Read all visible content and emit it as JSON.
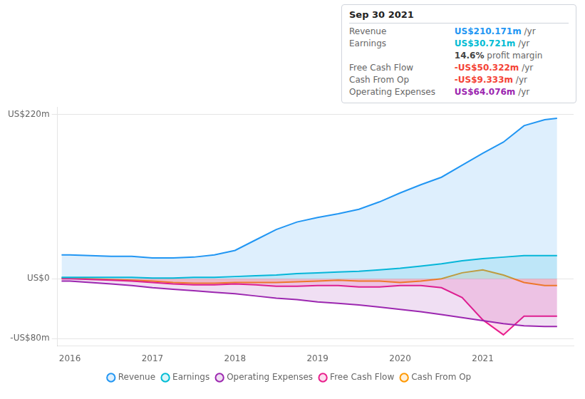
{
  "chart_data": {
    "type": "line",
    "x": [
      2015.9,
      2016.0,
      2016.25,
      2016.5,
      2016.75,
      2017.0,
      2017.25,
      2017.5,
      2017.75,
      2018.0,
      2018.25,
      2018.5,
      2018.75,
      2019.0,
      2019.25,
      2019.5,
      2019.75,
      2020.0,
      2020.25,
      2020.5,
      2020.75,
      2021.0,
      2021.25,
      2021.5,
      2021.75,
      2021.9
    ],
    "series": [
      {
        "name": "Revenue",
        "color": "#2196f3",
        "values": [
          32,
          32,
          31,
          30,
          30,
          28,
          28,
          29,
          32,
          38,
          52,
          66,
          76,
          82,
          87,
          93,
          103,
          115,
          126,
          136,
          152,
          168,
          183,
          205,
          213,
          215
        ]
      },
      {
        "name": "Earnings",
        "color": "#00bcd4",
        "values": [
          2,
          2,
          2,
          2,
          2,
          1,
          1,
          2,
          2,
          3,
          4,
          5,
          7,
          8,
          9,
          10,
          12,
          14,
          17,
          20,
          24,
          27,
          29,
          31,
          31,
          31
        ]
      },
      {
        "name": "Operating Expenses",
        "color": "#9c27b0",
        "values": [
          -3,
          -3,
          -5,
          -7,
          -9,
          -12,
          -14,
          -16,
          -18,
          -20,
          -23,
          -26,
          -28,
          -31,
          -33,
          -35,
          -38,
          -41,
          -44,
          -48,
          -52,
          -56,
          -60,
          -63,
          -64,
          -64
        ]
      },
      {
        "name": "Free Cash Flow",
        "color": "#e91e8c",
        "values": [
          0,
          0,
          -1,
          -2,
          -3,
          -5,
          -7,
          -8,
          -8,
          -7,
          -8,
          -10,
          -10,
          -9,
          -9,
          -11,
          -11,
          -9,
          -9,
          -12,
          -25,
          -55,
          -75,
          -50,
          -50,
          -50
        ]
      },
      {
        "name": "Cash From Op",
        "color": "#ff9800",
        "values": [
          1,
          1,
          0,
          -1,
          -2,
          -3,
          -5,
          -6,
          -6,
          -5,
          -5,
          -5,
          -4,
          -3,
          -2,
          -3,
          -3,
          -5,
          -3,
          0,
          8,
          12,
          5,
          -5,
          -9,
          -9
        ]
      }
    ],
    "xlim": [
      2015.85,
      2022.1
    ],
    "xticks": [
      2016,
      2017,
      2018,
      2019,
      2020,
      2021
    ],
    "ylim": [
      -90,
      230
    ],
    "yticks": [
      {
        "value": 220,
        "label": "US$220m"
      },
      {
        "value": 0,
        "label": "US$0"
      },
      {
        "value": -80,
        "label": "-US$80m"
      }
    ],
    "grid": true,
    "legend": "bottom",
    "info_box": {
      "title": "Sep 30 2021",
      "rows": [
        {
          "label": "Revenue",
          "value": "US$210.171m",
          "suffix": "/yr",
          "color": "#2196f3"
        },
        {
          "label": "Earnings",
          "value": "US$30.721m",
          "suffix": "/yr",
          "color": "#00bcd4"
        },
        {
          "value": "14.6%",
          "suffix": "profit margin"
        },
        {
          "label": "Free Cash Flow",
          "value": "-US$50.322m",
          "suffix": "/yr",
          "color": "#f44336"
        },
        {
          "label": "Cash From Op",
          "value": "-US$9.333m",
          "suffix": "/yr",
          "color": "#f44336"
        },
        {
          "label": "Operating Expenses",
          "value": "US$64.076m",
          "suffix": "/yr",
          "color": "#9c27b0"
        }
      ]
    }
  }
}
